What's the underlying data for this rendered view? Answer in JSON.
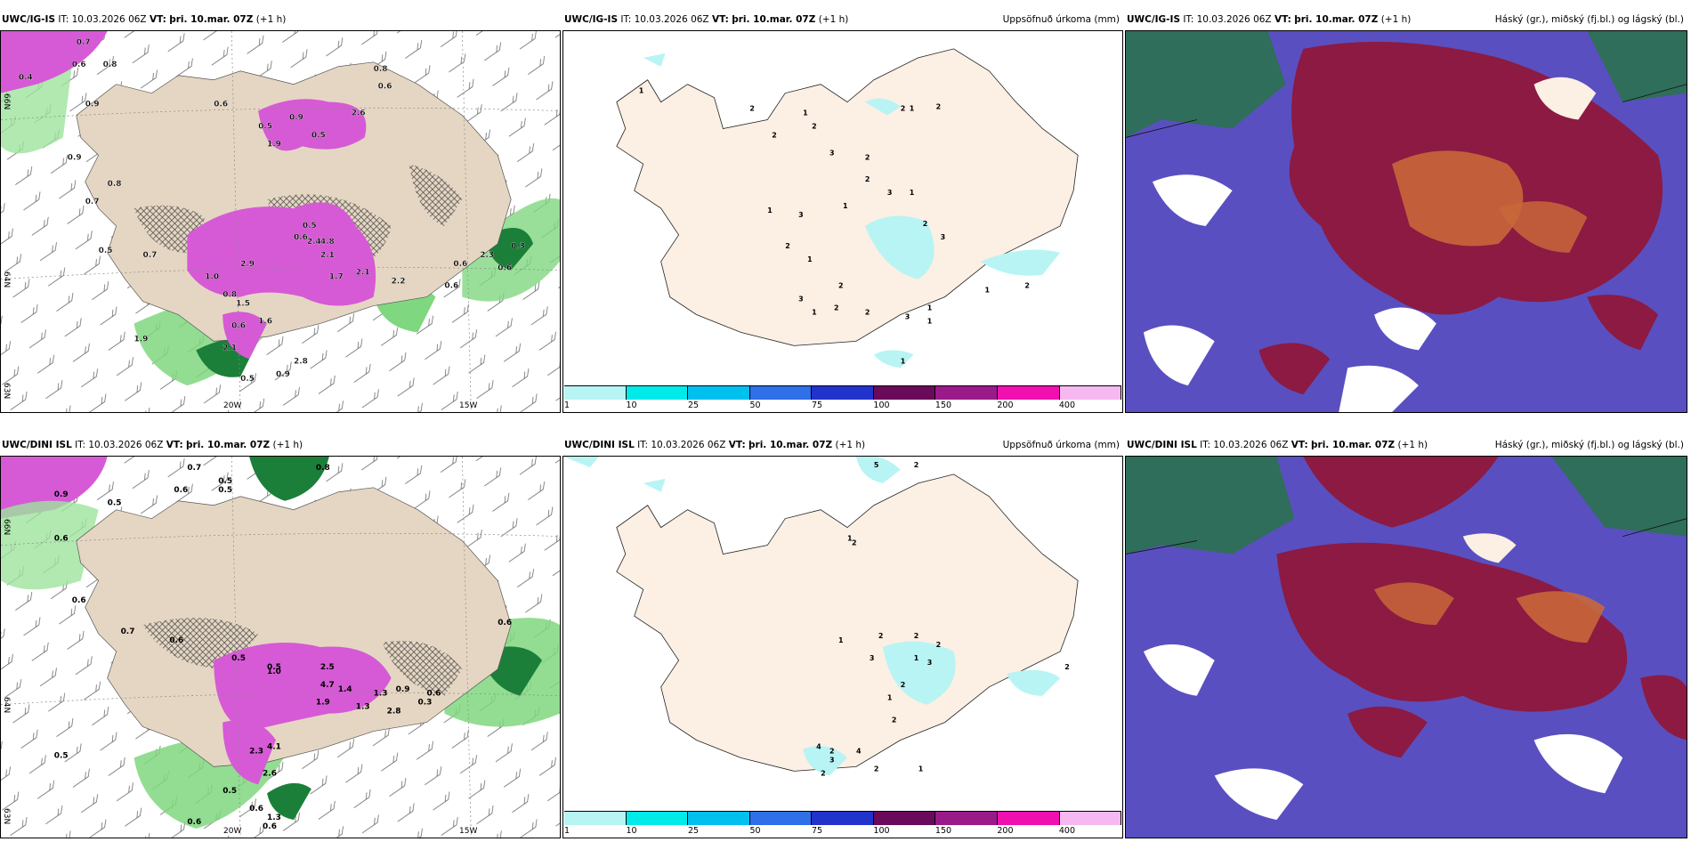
{
  "panels": {
    "igis_wind": {
      "model": "UWC/IG-IS",
      "it_label": "IT:",
      "it_value": "10.03.2026 06Z",
      "vt_label": "VT:",
      "vt_value": "þri. 10.mar. 07Z",
      "lead": "(+1 h)",
      "axis": {
        "lon1": "20W",
        "lon2": "15W",
        "lat1": "66N",
        "lat2": "64N",
        "lat3": "63N"
      },
      "labels": [
        "0.4",
        "0.7",
        "0.6",
        "0.8",
        "0.9",
        "0.6",
        "0.5",
        "0.9",
        "0.8",
        "0.6",
        "1.9",
        "0.5",
        "2.6",
        "0.9",
        "0.8",
        "0.7",
        "0.6",
        "0.5",
        "2.4",
        "4.8",
        "2.9",
        "2.1",
        "1.7",
        "2.1",
        "2.2",
        "1.5",
        "1.6",
        "2.1",
        "1.9",
        "0.5",
        "2.8",
        "0.9",
        "1.0",
        "0.8",
        "0.6",
        "0.5",
        "0.7",
        "0.6",
        "2.3",
        "0.6",
        "0.6",
        "0.3"
      ]
    },
    "igis_precip": {
      "model": "UWC/IG-IS",
      "it_label": "IT:",
      "it_value": "10.03.2026 06Z",
      "vt_label": "VT:",
      "vt_value": "þri. 10.mar. 07Z",
      "lead": "(+1 h)",
      "title": "Uppsöfnuð úrkoma (mm)",
      "labels": [
        "1",
        "2",
        "1",
        "2",
        "2",
        "3",
        "2",
        "1",
        "2",
        "2",
        "3",
        "2",
        "1",
        "2",
        "3",
        "1",
        "1",
        "3",
        "2",
        "1",
        "2",
        "2",
        "3",
        "2",
        "1",
        "1",
        "3",
        "1",
        "2",
        "1",
        "1"
      ]
    },
    "igis_cloud": {
      "model": "UWC/IG-IS",
      "it_label": "IT:",
      "it_value": "10.03.2026 06Z",
      "vt_label": "VT:",
      "vt_value": "þri. 10.mar. 07Z",
      "lead": "(+1 h)",
      "title": "Háský (gr.), miðský (fj.bl.) og lágský (bl.)"
    },
    "dini_wind": {
      "model": "UWC/DINI ISL",
      "it_label": "IT:",
      "it_value": "10.03.2026 06Z",
      "vt_label": "VT:",
      "vt_value": "þri. 10.mar. 07Z",
      "lead": "(+1 h)",
      "axis": {
        "lon1": "20W",
        "lon2": "15W",
        "lat1": "66N",
        "lat2": "64N",
        "lat3": "63N"
      },
      "labels": [
        "0.9",
        "0.7",
        "0.5",
        "0.8",
        "0.5",
        "0.6",
        "0.5",
        "0.6",
        "0.6",
        "0.7",
        "0.6",
        "0.5",
        "0.6",
        "0.5",
        "1.0",
        "2.5",
        "1.4",
        "4.7",
        "1.9",
        "1.3",
        "1.3",
        "2.8",
        "0.9",
        "0.3",
        "0.6",
        "2.3",
        "4.1",
        "2.6",
        "0.5",
        "0.6",
        "1.3",
        "0.5",
        "0.6",
        "0.6"
      ]
    },
    "dini_precip": {
      "model": "UWC/DINI ISL",
      "it_label": "IT:",
      "it_value": "10.03.2026 06Z",
      "vt_label": "VT:",
      "vt_value": "þri. 10.mar. 07Z",
      "lead": "(+1 h)",
      "title": "Uppsöfnuð úrkoma (mm)",
      "labels": [
        "5",
        "2",
        "2",
        "1",
        "1",
        "2",
        "3",
        "2",
        "1",
        "2",
        "1",
        "2",
        "3",
        "2",
        "4",
        "2",
        "3",
        "2",
        "4",
        "2",
        "1",
        "2"
      ]
    },
    "dini_cloud": {
      "model": "UWC/DINI ISL",
      "it_label": "IT:",
      "it_value": "10.03.2026 06Z",
      "vt_label": "VT:",
      "vt_value": "þri. 10.mar. 07Z",
      "lead": "(+1 h)",
      "title": "Háský (gr.), miðský (fj.bl.) og lágský (bl.)"
    }
  },
  "legend": {
    "ticks": [
      "1",
      "10",
      "25",
      "50",
      "75",
      "100",
      "150",
      "200",
      "400"
    ],
    "colors": [
      "#b8f4f4",
      "#00eaea",
      "#00c0f0",
      "#2f6fe8",
      "#2233cc",
      "#6a0a5a",
      "#9a1a8a",
      "#f010b0",
      "#f6b8f0"
    ]
  },
  "colors": {
    "land": "#e5d6c3",
    "land_light": "#fcefe4",
    "green": "#7fd77f",
    "darkgreen": "#1b7f3a",
    "magenta": "#d65ad6",
    "cloud_blue": "#5a4fc0",
    "cloud_maroon": "#8c1a42",
    "cloud_orange": "#c8673a",
    "cloud_teal": "#2e6e5a"
  }
}
